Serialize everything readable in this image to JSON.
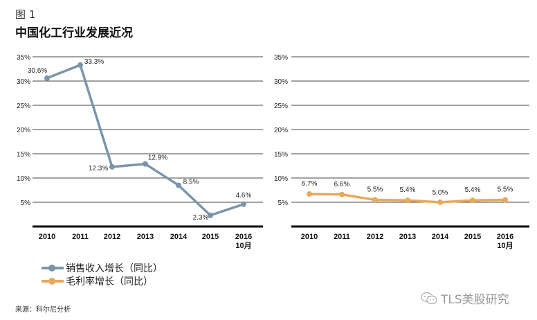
{
  "figure_number": "图 1",
  "title": "中国化工行业发展近况",
  "source": "来源：科尔尼分析",
  "watermark": {
    "icon": "wechat-icon",
    "text": "TLS美股研究"
  },
  "legend": [
    {
      "label": "销售收入增长（同比）",
      "color": "#7b95a8"
    },
    {
      "label": "毛利率增长（同比）",
      "color": "#e8a95c"
    }
  ],
  "chart_data": [
    {
      "type": "line",
      "title": "",
      "categories": [
        "2010",
        "2011",
        "2012",
        "2013",
        "2014",
        "2015",
        "2016\n10月"
      ],
      "category_lines": [
        [
          "2010"
        ],
        [
          "2011"
        ],
        [
          "2012"
        ],
        [
          "2013"
        ],
        [
          "2014"
        ],
        [
          "2015"
        ],
        [
          "2016",
          "10月"
        ]
      ],
      "series": [
        {
          "name": "销售收入增长（同比）",
          "color": "#7b95a8",
          "values": [
            30.6,
            33.3,
            12.3,
            12.9,
            8.5,
            2.3,
            4.6
          ],
          "labels": [
            "30.6%",
            "33.3%",
            "12.3%",
            "12.9%",
            "8.5%",
            "2.3%",
            "4.6%"
          ]
        }
      ],
      "yticks": [
        5,
        10,
        15,
        20,
        25,
        30,
        35
      ],
      "ytick_labels": [
        "5%",
        "10%",
        "15%",
        "20%",
        "25%",
        "30%",
        "35%"
      ],
      "ylim": [
        0,
        35
      ],
      "xlabel": "",
      "ylabel": "",
      "grid": true,
      "legend": "bottom-left"
    },
    {
      "type": "line",
      "title": "",
      "categories": [
        "2010",
        "2011",
        "2012",
        "2013",
        "2014",
        "2015",
        "2016\n10月"
      ],
      "category_lines": [
        [
          "2010"
        ],
        [
          "2011"
        ],
        [
          "2012"
        ],
        [
          "2013"
        ],
        [
          "2014"
        ],
        [
          "2015"
        ],
        [
          "2016",
          "10月"
        ]
      ],
      "series": [
        {
          "name": "毛利率增长（同比）",
          "color": "#e8a95c",
          "values": [
            6.7,
            6.6,
            5.5,
            5.4,
            5.0,
            5.4,
            5.5
          ],
          "labels": [
            "6.7%",
            "6.6%",
            "5.5%",
            "5.4%",
            "5.0%",
            "5.4%",
            "5.5%"
          ]
        }
      ],
      "yticks": [
        5,
        10,
        15,
        20,
        25,
        30,
        35
      ],
      "ytick_labels": [
        "5%",
        "10%",
        "15%",
        "20%",
        "25%",
        "30%",
        "35%"
      ],
      "ylim": [
        0,
        35
      ],
      "xlabel": "",
      "ylabel": "",
      "grid": true,
      "legend": "bottom-left"
    }
  ]
}
